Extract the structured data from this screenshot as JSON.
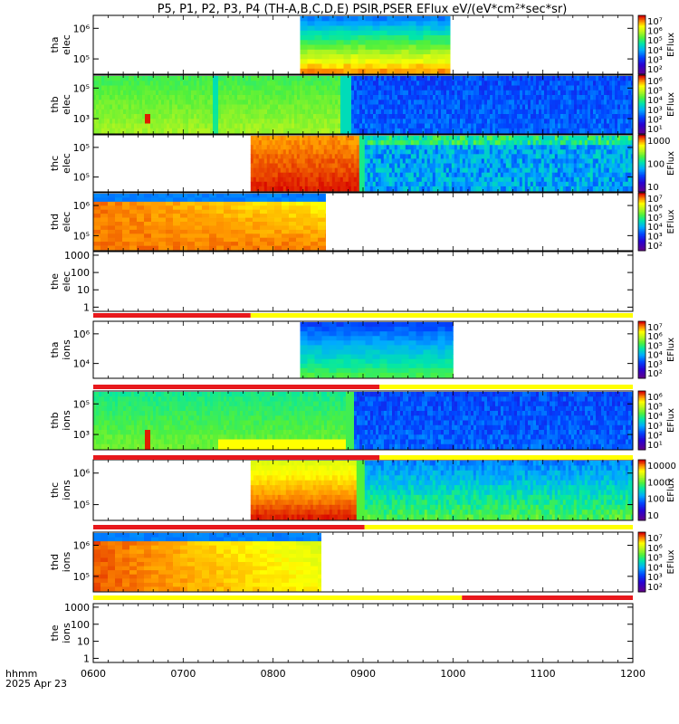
{
  "title": "P5, P1, P2, P3, P4 (TH-A,B,C,D,E) PSIR,PSER EFlux eV/(eV*cm²*sec*sr)",
  "footer": {
    "unit": "hhmm",
    "date": "2025 Apr 23"
  },
  "colors": {
    "red": "#e8181c",
    "yellow": "#ffff00",
    "black": "#000000"
  },
  "chart_data": {
    "type": "heatmap",
    "x_axis": {
      "range": [
        "0600",
        "1200"
      ],
      "ticks": [
        "0600",
        "0700",
        "0800",
        "0900",
        "1000",
        "1100",
        "1200"
      ]
    },
    "panels": [
      {
        "id": "tha_elec",
        "ylabel": [
          "tha",
          "elec"
        ],
        "yticks": [
          "10⁶",
          "10⁵"
        ],
        "colorbar": {
          "label": "EFlux",
          "ticks": [
            "10⁷",
            "10⁶",
            "10⁵",
            "10⁴",
            "10³",
            "10²"
          ]
        },
        "data_extent": [
          "0818",
          "0958"
        ]
      },
      {
        "id": "thb_elec",
        "ylabel": [
          "thb",
          "elec"
        ],
        "yticks": [
          "10⁵",
          "10³"
        ],
        "colorbar": {
          "label": "EFlux",
          "ticks": [
            "10⁶",
            "10⁵",
            "10⁴",
            "10³",
            "10²",
            "10¹"
          ]
        },
        "data_extent": [
          "0600",
          "1200"
        ]
      },
      {
        "id": "thc_elec",
        "ylabel": [
          "thc",
          "elec"
        ],
        "yticks": [
          "10⁵",
          "10⁵"
        ],
        "colorbar": {
          "label": "EFlux",
          "ticks": [
            "1000",
            "100",
            "10"
          ]
        },
        "data_extent": [
          "0745",
          "1200"
        ]
      },
      {
        "id": "thd_elec",
        "ylabel": [
          "thd",
          "elec"
        ],
        "yticks": [
          "10⁶",
          "10⁵"
        ],
        "colorbar": {
          "label": "EFlux",
          "ticks": [
            "10⁷",
            "10⁶",
            "10⁵",
            "10⁴",
            "10³",
            "10²"
          ]
        },
        "data_extent": [
          "0600",
          "0835"
        ]
      },
      {
        "id": "the_elec",
        "ylabel": [
          "the",
          "elec"
        ],
        "yticks": [
          "1000",
          "100",
          "10",
          "1"
        ],
        "colorbar": null,
        "data_extent": null
      },
      {
        "id": "tha_ions",
        "ylabel": [
          "tha",
          "ions"
        ],
        "yticks": [
          "10⁶",
          "10⁴"
        ],
        "colorbar": {
          "label": "EFlux",
          "ticks": [
            "10⁷",
            "10⁶",
            "10⁵",
            "10⁴",
            "10³",
            "10²"
          ]
        },
        "data_extent": [
          "0818",
          "1000"
        ]
      },
      {
        "id": "thb_ions",
        "ylabel": [
          "thb",
          "ions"
        ],
        "yticks": [
          "10⁵",
          "10³"
        ],
        "colorbar": {
          "label": "EFlux",
          "ticks": [
            "10⁶",
            "10⁵",
            "10⁴",
            "10³",
            "10²",
            "10¹"
          ]
        },
        "data_extent": [
          "0600",
          "1200"
        ]
      },
      {
        "id": "thc_ions",
        "ylabel": [
          "thc",
          "ions"
        ],
        "yticks": [
          "10⁶",
          "10⁵"
        ],
        "colorbar": {
          "label": "EFlux",
          "ticks": [
            "10000",
            "1000",
            "100",
            "10"
          ]
        },
        "data_extent": [
          "0745",
          "1200"
        ]
      },
      {
        "id": "thd_ions",
        "ylabel": [
          "thd",
          "ions"
        ],
        "yticks": [
          "10⁶",
          "10⁵"
        ],
        "colorbar": {
          "label": "EFlux",
          "ticks": [
            "10⁷",
            "10⁶",
            "10⁵",
            "10⁴",
            "10³",
            "10²"
          ]
        },
        "data_extent": [
          "0600",
          "0832"
        ]
      },
      {
        "id": "the_ions",
        "ylabel": [
          "the",
          "ions"
        ],
        "yticks": [
          "1000",
          "100",
          "10",
          "1"
        ],
        "colorbar": null,
        "data_extent": null
      }
    ],
    "status_bars": [
      {
        "after_panel": "the_elec",
        "segments": [
          {
            "from": "0600",
            "to": "0745",
            "color": "red"
          },
          {
            "from": "0745",
            "to": "1200",
            "color": "yellow"
          }
        ]
      },
      {
        "after_panel": "tha_ions",
        "segments": [
          {
            "from": "0600",
            "to": "0911",
            "color": "red"
          },
          {
            "from": "0911",
            "to": "1200",
            "color": "yellow"
          }
        ]
      },
      {
        "after_panel": "thb_ions",
        "segments": [
          {
            "from": "0600",
            "to": "0911",
            "color": "red"
          },
          {
            "from": "0911",
            "to": "1200",
            "color": "yellow"
          }
        ]
      },
      {
        "after_panel": "thc_ions",
        "segments": [
          {
            "from": "0600",
            "to": "0861",
            "color": "red"
          },
          {
            "from": "0861",
            "to": "1200",
            "color": "yellow"
          }
        ]
      },
      {
        "after_panel": "thd_ions",
        "segments": [
          {
            "from": "0600",
            "to": "1006",
            "color": "yellow"
          },
          {
            "from": "1006",
            "to": "1200",
            "color": "red"
          }
        ]
      }
    ]
  }
}
